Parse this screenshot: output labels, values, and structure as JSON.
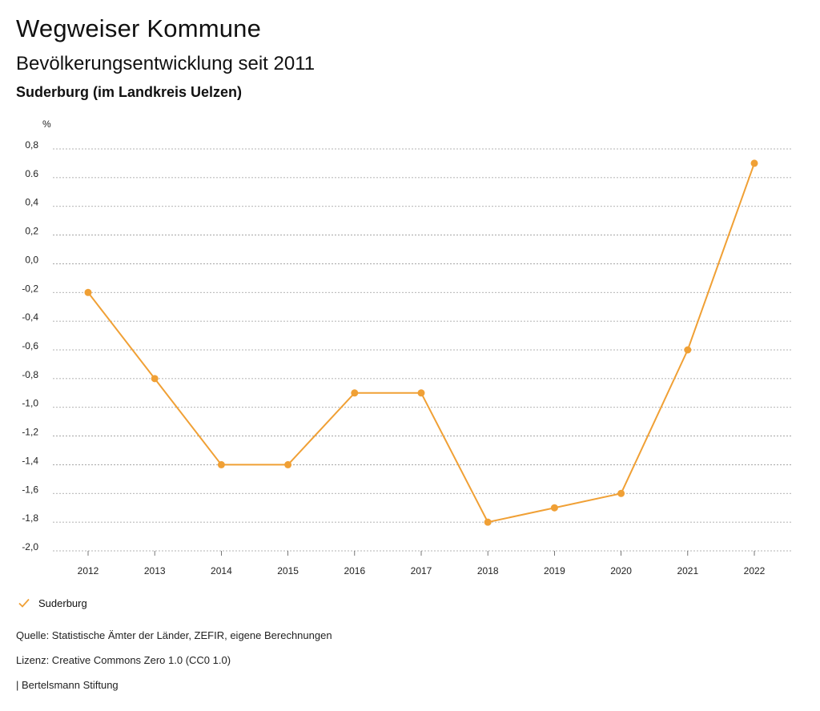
{
  "header": {
    "title": "Wegweiser Kommune",
    "subtitle": "Bevölkerungsentwicklung seit 2011",
    "region": "Suderburg (im Landkreis Uelzen)"
  },
  "chart_data": {
    "type": "line",
    "title": "Bevölkerungsentwicklung seit 2011",
    "ylabel": "%",
    "xlabel": "",
    "categories": [
      "2012",
      "2013",
      "2014",
      "2015",
      "2016",
      "2017",
      "2018",
      "2019",
      "2020",
      "2021",
      "2022"
    ],
    "series": [
      {
        "name": "Suderburg",
        "color": "#f0a035",
        "values": [
          -0.2,
          -0.8,
          -1.4,
          -1.4,
          -0.9,
          -0.9,
          -1.8,
          -1.7,
          -1.6,
          -0.6,
          0.7
        ]
      }
    ],
    "ylim": [
      -2.0,
      0.8
    ],
    "yticks": [
      0.8,
      0.6,
      0.4,
      0.2,
      0.0,
      -0.2,
      -0.4,
      -0.6,
      -0.8,
      -1.0,
      -1.2,
      -1.4,
      -1.6,
      -1.8,
      -2.0
    ],
    "ytick_labels": [
      "0,8",
      "0.6",
      "0,4",
      "0,2",
      "0,0",
      "-0,2",
      "-0,4",
      "-0,6",
      "-0,8",
      "-1,0",
      "-1,2",
      "-1,4",
      "-1,6",
      "-1,8",
      "-2,0"
    ],
    "grid": true,
    "legend_position": "bottom-left"
  },
  "legend": {
    "label": "Suderburg",
    "icon": "check-icon"
  },
  "footer": {
    "source": "Quelle: Statistische Ämter der Länder, ZEFIR, eigene Berechnungen",
    "license": "Lizenz: Creative Commons Zero 1.0 (CC0 1.0)",
    "brand": "| Bertelsmann Stiftung"
  }
}
